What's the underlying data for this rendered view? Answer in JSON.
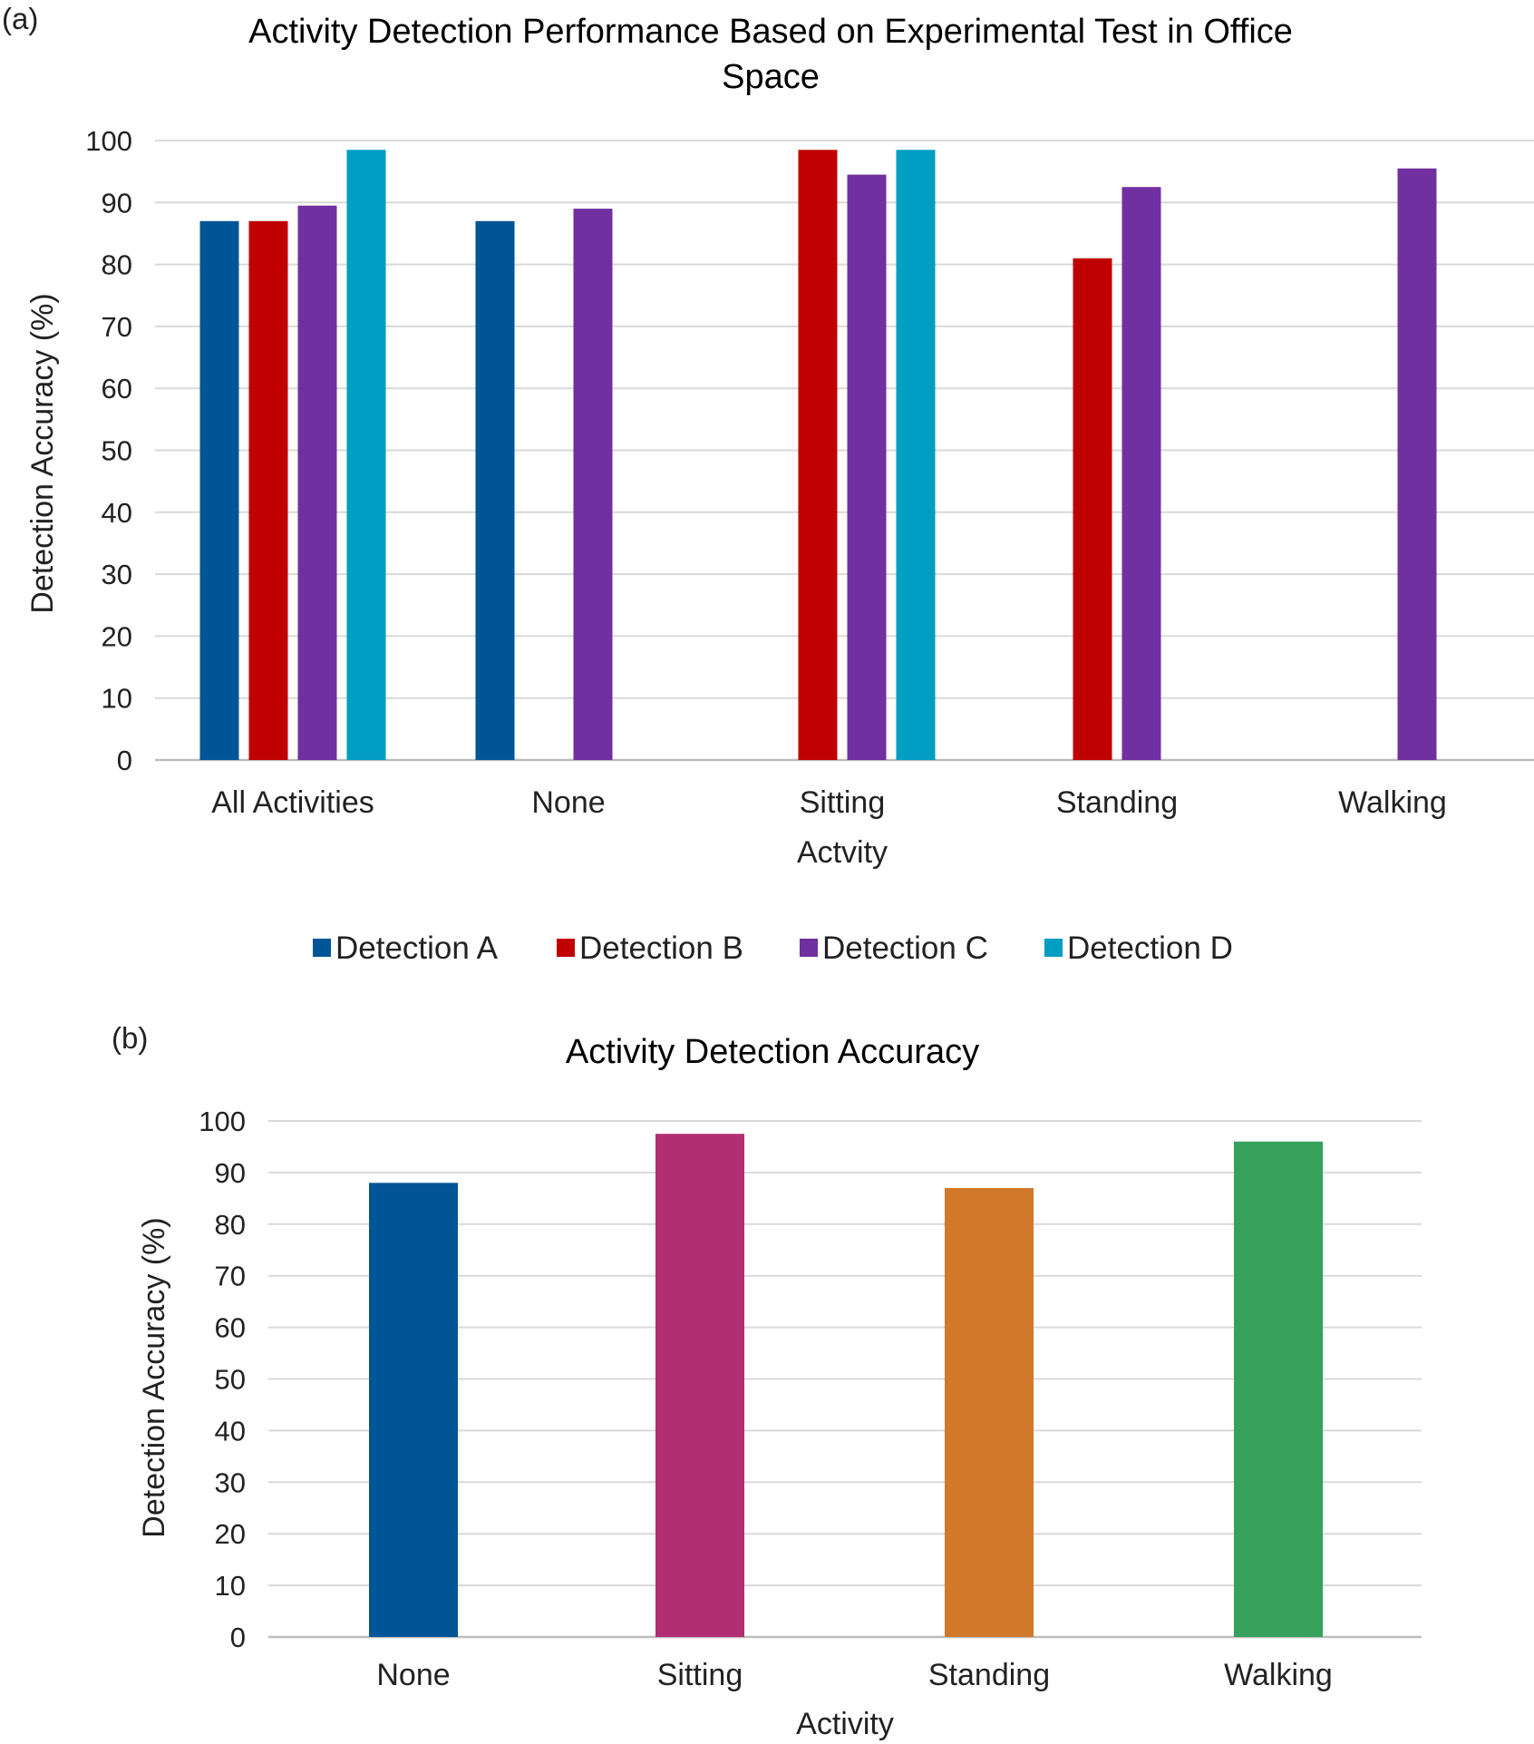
{
  "chart_data": [
    {
      "type": "bar",
      "panel_label": "(a)",
      "title": "Activity Detection Performance Based on Experimental Test in Office Space",
      "title_lines": [
        "Activity Detection Performance Based on Experimental Test in Office",
        "Space"
      ],
      "xlabel": "Actvity",
      "ylabel": "Detection Accuracy (%)",
      "ylim": [
        0,
        100
      ],
      "yticks": [
        "0",
        "10",
        "20",
        "30",
        "40",
        "50",
        "60",
        "70",
        "80",
        "90",
        "100"
      ],
      "grid": true,
      "legend_position": "bottom",
      "categories": [
        "All Activities",
        "None",
        "Sitting",
        "Standing",
        "Walking"
      ],
      "series": [
        {
          "name": "Detection A",
          "color": "#005596",
          "values": [
            87,
            87,
            null,
            null,
            null
          ]
        },
        {
          "name": "Detection B",
          "color": "#C00000",
          "values": [
            87,
            null,
            98.5,
            81,
            null
          ]
        },
        {
          "name": "Detection C",
          "color": "#7030A0",
          "values": [
            89.5,
            89,
            94.5,
            92.5,
            95.5
          ]
        },
        {
          "name": "Detection D",
          "color": "#009EC2",
          "values": [
            98.5,
            null,
            98.5,
            null,
            null
          ]
        }
      ]
    },
    {
      "type": "bar",
      "panel_label": "(b)",
      "title": "Activity Detection Accuracy",
      "xlabel": "Activity",
      "ylabel": "Detection Accuracy (%)",
      "ylim": [
        0,
        100
      ],
      "yticks": [
        "0",
        "10",
        "20",
        "30",
        "40",
        "50",
        "60",
        "70",
        "80",
        "90",
        "100"
      ],
      "grid": true,
      "legend_position": "none",
      "categories": [
        "None",
        "Sitting",
        "Standing",
        "Walking"
      ],
      "values": [
        88,
        97.5,
        87,
        96
      ],
      "colors": [
        "#005596",
        "#B22E74",
        "#D2782B",
        "#35A15B"
      ]
    }
  ]
}
